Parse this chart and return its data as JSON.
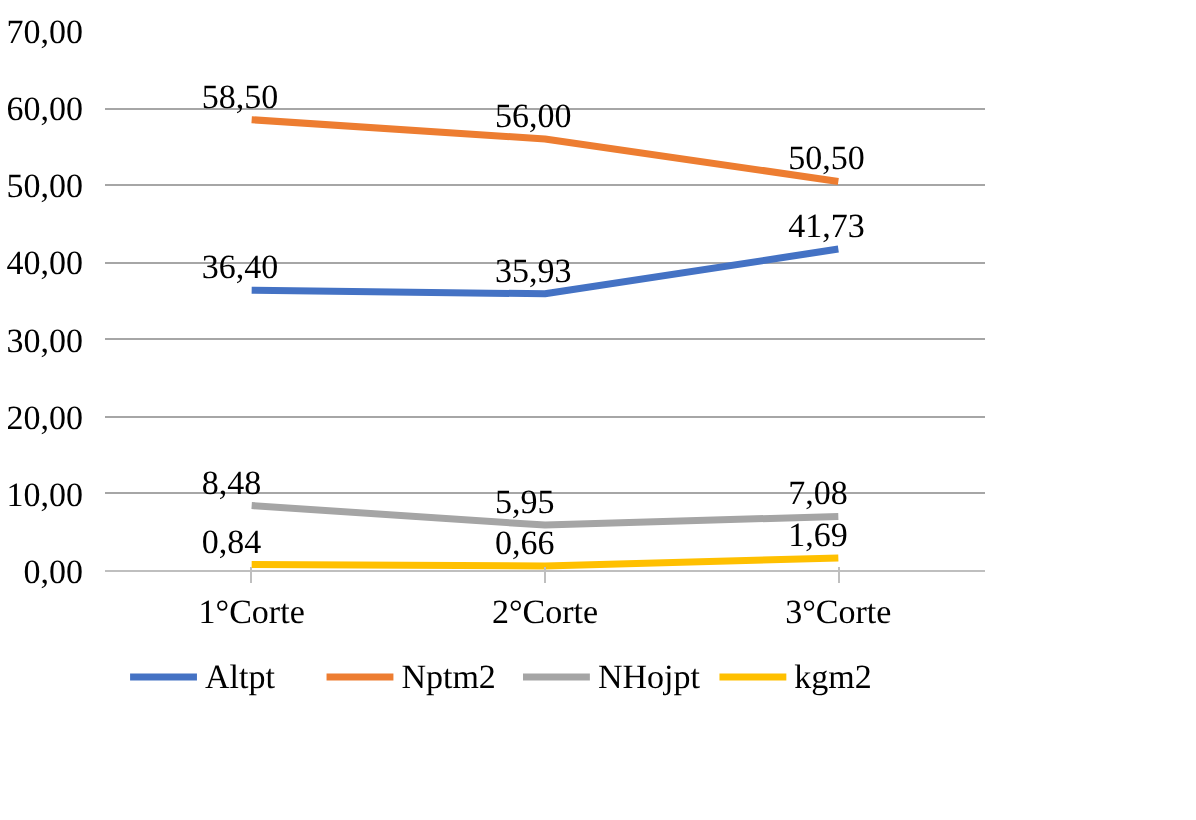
{
  "chart_data": {
    "type": "line",
    "categories": [
      "1°Corte",
      "2°Corte",
      "3°Corte"
    ],
    "series": [
      {
        "name": "Altpt",
        "color": "#4472c4",
        "values": [
          36.4,
          35.93,
          41.73
        ],
        "value_labels": [
          "36,40",
          "35,93",
          "41,73"
        ]
      },
      {
        "name": "Nptm2",
        "color": "#ed7d31",
        "values": [
          58.5,
          56.0,
          50.5
        ],
        "value_labels": [
          "58,50",
          "56,00",
          "50,50"
        ]
      },
      {
        "name": "NHojpt",
        "color": "#a5a5a5",
        "values": [
          8.48,
          5.95,
          7.08
        ],
        "value_labels": [
          "8,48",
          "5,95",
          "7,08"
        ]
      },
      {
        "name": "kgm2",
        "color": "#ffc000",
        "values": [
          0.84,
          0.66,
          1.69
        ],
        "value_labels": [
          "0,84",
          "0,66",
          "1,69"
        ]
      }
    ],
    "ylim": [
      0,
      70
    ],
    "yticks": [
      {
        "value": 0,
        "label": "0,00"
      },
      {
        "value": 10,
        "label": "10,00"
      },
      {
        "value": 20,
        "label": "20,00"
      },
      {
        "value": 30,
        "label": "30,00"
      },
      {
        "value": 40,
        "label": "40,00"
      },
      {
        "value": 50,
        "label": "50,00"
      },
      {
        "value": 60,
        "label": "60,00"
      },
      {
        "value": 70,
        "label": "70,00"
      }
    ],
    "grid": "y",
    "legend": "bottom",
    "marker": "none",
    "line_style": "solid"
  }
}
